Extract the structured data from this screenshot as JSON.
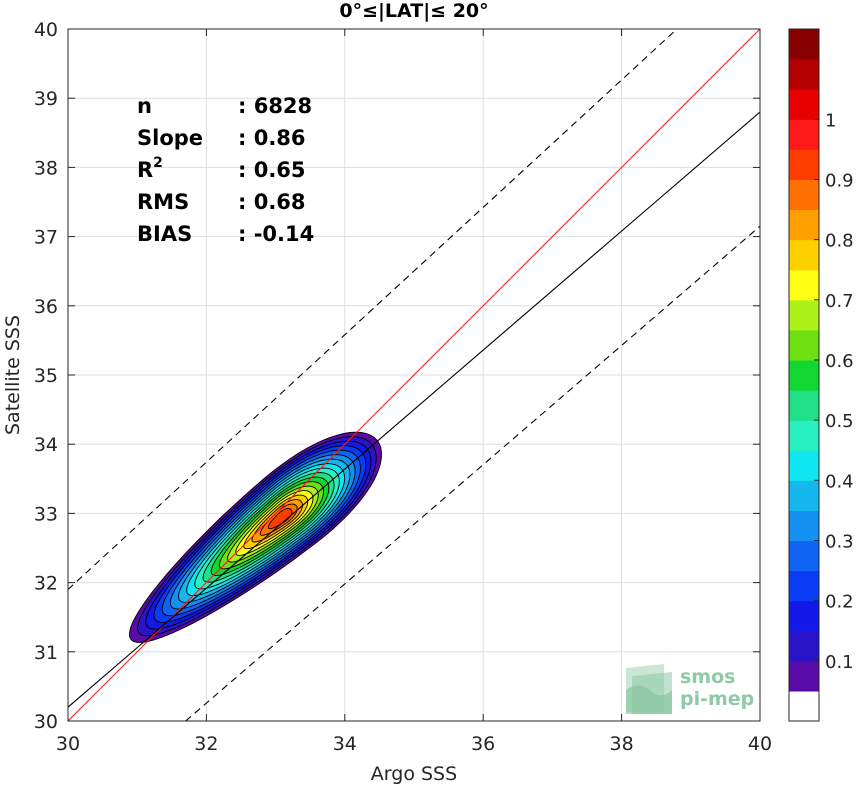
{
  "chart_data": {
    "type": "contour-scatter",
    "title": "0°≤|LAT|≤ 20°",
    "xlabel": "Argo SSS",
    "ylabel": "Satellite SSS",
    "xlim": [
      30,
      40
    ],
    "ylim": [
      30,
      40
    ],
    "xticks": [
      30,
      32,
      34,
      36,
      38,
      40
    ],
    "yticks": [
      30,
      31,
      32,
      33,
      34,
      35,
      36,
      37,
      38,
      39,
      40
    ],
    "grid": true,
    "stats": [
      {
        "label": "n",
        "value": ": 6828"
      },
      {
        "label": "Slope",
        "value": ": 0.86"
      },
      {
        "label": "R",
        "sup": "2",
        "value": ": 0.65"
      },
      {
        "label": "RMS",
        "value": ": 0.68"
      },
      {
        "label": "BIAS",
        "value": ": -0.14"
      }
    ],
    "lines": [
      {
        "kind": "one-to-one",
        "color": "#e8201c",
        "points": [
          [
            30,
            30
          ],
          [
            40,
            40
          ]
        ]
      },
      {
        "kind": "regression",
        "color": "#000000",
        "points": [
          [
            30,
            30.2
          ],
          [
            40,
            38.8
          ]
        ]
      },
      {
        "kind": "upper-dashed",
        "color": "#000000",
        "points": [
          [
            30,
            31.9
          ],
          [
            38.8,
            40
          ]
        ]
      },
      {
        "kind": "lower-dashed",
        "color": "#000000",
        "points": [
          [
            31.7,
            30
          ],
          [
            40,
            37.15
          ]
        ]
      }
    ],
    "density_peak": {
      "x": 33.1,
      "y": 32.95
    },
    "colorbar": {
      "ticks": [
        "0.1",
        "0.2",
        "0.3",
        "0.4",
        "0.5",
        "0.6",
        "0.7",
        "0.8",
        "0.9",
        "1"
      ],
      "levels": [
        0.05,
        0.1,
        0.15,
        0.2,
        0.25,
        0.3,
        0.35,
        0.4,
        0.45,
        0.5,
        0.55,
        0.6,
        0.65,
        0.7,
        0.75,
        0.8,
        0.85,
        0.9,
        0.95
      ],
      "colors": [
        "#ffffff",
        "#5a0aa8",
        "#2a14c8",
        "#1218e8",
        "#0a3cf6",
        "#1064f4",
        "#1490f0",
        "#14b8ee",
        "#10e6f2",
        "#28f0c0",
        "#20e088",
        "#10d830",
        "#6ee010",
        "#aef01a",
        "#ffff14",
        "#ffd000",
        "#ffa000",
        "#ff7000",
        "#ff3c00",
        "#ff1a1a",
        "#e80000",
        "#b40000",
        "#880000"
      ]
    }
  },
  "watermark": {
    "line1": "smos",
    "line2": "pi-mep"
  }
}
